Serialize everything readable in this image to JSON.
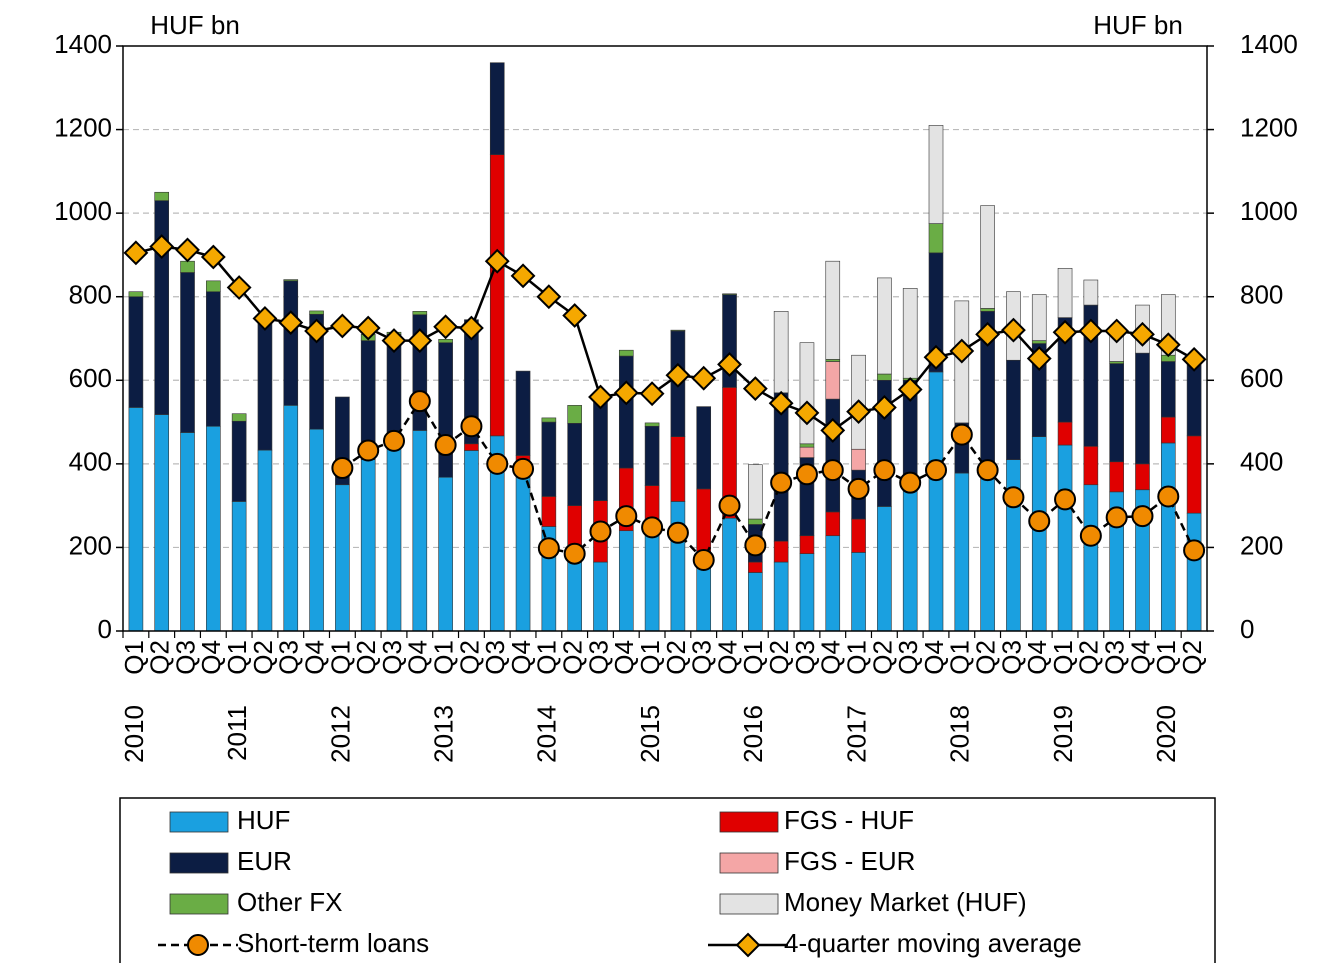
{
  "chart_data": {
    "type": "bar",
    "stacked": true,
    "y_label": "HUF bn",
    "y2_label": "HUF bn",
    "categories": [
      "Q1",
      "Q2",
      "Q3",
      "Q4",
      "Q1",
      "Q2",
      "Q3",
      "Q4",
      "Q1",
      "Q2",
      "Q3",
      "Q4",
      "Q1",
      "Q2",
      "Q3",
      "Q4",
      "Q1",
      "Q2",
      "Q3",
      "Q4",
      "Q1",
      "Q2",
      "Q3",
      "Q4",
      "Q1",
      "Q2",
      "Q3",
      "Q4",
      "Q1",
      "Q2",
      "Q3",
      "Q4",
      "Q1",
      "Q2",
      "Q3",
      "Q4",
      "Q1",
      "Q2",
      "Q3",
      "Q4",
      "Q1",
      "Q2"
    ],
    "years": [
      "2010",
      "2011",
      "2012",
      "2013",
      "2014",
      "2015",
      "2016",
      "2017",
      "2018",
      "2019",
      "2020"
    ],
    "ylim": [
      0,
      1400
    ],
    "yticks": [
      0,
      200,
      400,
      600,
      800,
      1000,
      1200,
      1400
    ],
    "y2lim": [
      0,
      1400
    ],
    "y2ticks": [
      0,
      200,
      400,
      600,
      800,
      1000,
      1200,
      1400
    ],
    "grid": true,
    "series": [
      {
        "name": "HUF",
        "type": "bar",
        "color": "#1aa0e0",
        "values": [
          535,
          518,
          475,
          490,
          310,
          433,
          540,
          483,
          350,
          410,
          445,
          480,
          368,
          432,
          467,
          405,
          250,
          185,
          165,
          240,
          230,
          310,
          150,
          270,
          140,
          165,
          185,
          228,
          188,
          298,
          340,
          620,
          378,
          370,
          410,
          465,
          445,
          350,
          333,
          338,
          450,
          282
        ]
      },
      {
        "name": "FGS - HUF",
        "type": "bar",
        "color": "#e00000",
        "values": [
          null,
          null,
          null,
          null,
          null,
          null,
          null,
          null,
          null,
          null,
          null,
          null,
          null,
          16,
          673,
          15,
          72,
          115,
          147,
          150,
          118,
          155,
          190,
          313,
          25,
          50,
          43,
          57,
          80,
          null,
          null,
          null,
          null,
          null,
          null,
          null,
          55,
          92,
          72,
          62,
          62,
          185
        ]
      },
      {
        "name": "EUR",
        "type": "bar",
        "color": "#0c1d43",
        "values": [
          265,
          512,
          383,
          322,
          192,
          312,
          298,
          275,
          210,
          285,
          265,
          277,
          322,
          297,
          220,
          202,
          178,
          197,
          248,
          268,
          142,
          253,
          197,
          222,
          90,
          355,
          187,
          270,
          117,
          302,
          260,
          285,
          120,
          395,
          238,
          223,
          250,
          338,
          235,
          265,
          133,
          181
        ]
      },
      {
        "name": "FGS - EUR",
        "type": "bar",
        "color": "#f4a6a6",
        "values": [
          null,
          null,
          null,
          null,
          null,
          null,
          null,
          null,
          null,
          null,
          null,
          null,
          null,
          null,
          null,
          null,
          null,
          null,
          null,
          null,
          null,
          null,
          null,
          null,
          null,
          null,
          25,
          90,
          50,
          null,
          null,
          null,
          null,
          null,
          null,
          null,
          null,
          null,
          null,
          null,
          null,
          null
        ]
      },
      {
        "name": "Other FX",
        "type": "bar",
        "color": "#6aad45",
        "values": [
          12,
          20,
          27,
          26,
          18,
          null,
          3,
          8,
          null,
          15,
          5,
          8,
          8,
          null,
          null,
          null,
          10,
          43,
          null,
          14,
          8,
          2,
          null,
          2,
          13,
          null,
          8,
          5,
          null,
          15,
          5,
          70,
          null,
          7,
          null,
          7,
          null,
          null,
          5,
          null,
          15,
          null
        ]
      },
      {
        "name": "Money Market (HUF)",
        "type": "bar",
        "color": "#e3e3e3",
        "values": [
          null,
          null,
          null,
          null,
          null,
          null,
          null,
          null,
          null,
          null,
          null,
          null,
          null,
          null,
          null,
          null,
          null,
          null,
          null,
          null,
          null,
          null,
          null,
          null,
          130,
          195,
          242,
          235,
          225,
          230,
          215,
          235,
          292,
          246,
          164,
          110,
          118,
          60,
          73,
          115,
          145,
          null
        ]
      },
      {
        "name": "Short-term loans",
        "type": "line",
        "color": "#f08a00",
        "marker": "circle",
        "dashed": true,
        "values": [
          null,
          null,
          null,
          null,
          null,
          null,
          null,
          null,
          390,
          432,
          455,
          550,
          445,
          490,
          400,
          388,
          198,
          185,
          238,
          275,
          248,
          235,
          170,
          300,
          205,
          355,
          375,
          385,
          340,
          385,
          355,
          385,
          470,
          385,
          320,
          263,
          315,
          228,
          272,
          275,
          322,
          193
        ]
      },
      {
        "name": "4-quarter moving average",
        "type": "line",
        "color": "#f5a800",
        "marker": "diamond",
        "dashed": false,
        "values": [
          905,
          920,
          912,
          895,
          822,
          748,
          738,
          718,
          730,
          725,
          695,
          695,
          728,
          725,
          885,
          850,
          800,
          755,
          560,
          570,
          568,
          612,
          605,
          638,
          580,
          545,
          522,
          480,
          525,
          535,
          578,
          655,
          670,
          710,
          720,
          652,
          715,
          718,
          718,
          710,
          685,
          650
        ]
      }
    ]
  }
}
